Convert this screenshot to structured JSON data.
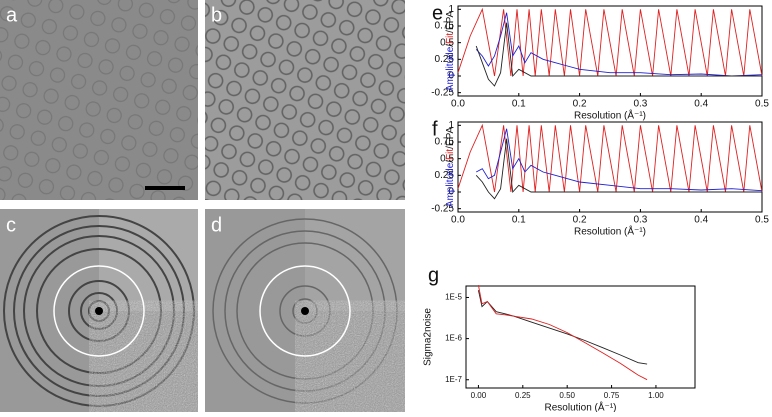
{
  "panels": {
    "a": "a",
    "b": "b",
    "c": "c",
    "d": "d"
  },
  "chart_data": [
    {
      "type": "line",
      "label": "e",
      "ylabel_parts": [
        "Amplitude",
        "/",
        "Fit",
        "/EPA"
      ],
      "xlabel": "Resolution (Å⁻¹)",
      "xlim": [
        0,
        0.5
      ],
      "ylim": [
        -0.3,
        1.05
      ],
      "xticks": [
        {
          "value": 0,
          "label": "0.0"
        },
        0.1,
        0.2,
        0.3,
        0.4,
        0.5
      ],
      "yticks": [
        -0.25,
        0,
        0.25,
        0.5,
        0.75,
        1
      ],
      "series": [
        {
          "color": "#e02020",
          "x": [
            0,
            0.02,
            0.04,
            0.06,
            0.075,
            0.087,
            0.097,
            0.107,
            0.117,
            0.127,
            0.137,
            0.15,
            0.16,
            0.175,
            0.185,
            0.2,
            0.21,
            0.23,
            0.24,
            0.26,
            0.27,
            0.29,
            0.3,
            0.32,
            0.33,
            0.35,
            0.36,
            0.38,
            0.39,
            0.41,
            0.42,
            0.44,
            0.45,
            0.47,
            0.48,
            0.5
          ],
          "values": [
            0.05,
            0.6,
            1,
            0,
            1,
            0,
            1,
            0,
            1,
            0,
            1,
            0,
            1,
            0,
            1,
            0,
            1,
            0,
            1,
            0,
            1,
            0,
            1,
            0,
            1,
            0,
            1,
            0,
            1,
            0,
            1,
            0,
            1,
            0,
            1,
            0
          ]
        },
        {
          "color": "#2020d0",
          "x": [
            0.03,
            0.04,
            0.05,
            0.06,
            0.07,
            0.08,
            0.09,
            0.1,
            0.11,
            0.12,
            0.14,
            0.16,
            0.18,
            0.2,
            0.25,
            0.3,
            0.35,
            0.4,
            0.45,
            0.5
          ],
          "values": [
            0.4,
            0.3,
            0.15,
            0.3,
            0.6,
            0.95,
            0.3,
            0.45,
            0.2,
            0.35,
            0.25,
            0.2,
            0.15,
            0.1,
            0.05,
            0.05,
            0.02,
            0.03,
            0,
            0.02
          ]
        },
        {
          "color": "#222222",
          "x": [
            0.03,
            0.04,
            0.05,
            0.06,
            0.07,
            0.08,
            0.09,
            0.1,
            0.12,
            0.15,
            0.2,
            0.3,
            0.4,
            0.5
          ],
          "values": [
            0.45,
            0.2,
            -0.05,
            -0.15,
            0.05,
            0.8,
            0,
            0.1,
            0,
            0,
            0,
            0,
            0,
            0
          ]
        }
      ]
    },
    {
      "type": "line",
      "label": "f",
      "ylabel_parts": [
        "Amplitude",
        "/",
        "Fit",
        "/EPA"
      ],
      "xlabel": "Resolution (Å⁻¹)",
      "xlim": [
        0,
        0.5
      ],
      "ylim": [
        -0.3,
        1.05
      ],
      "xticks": [
        {
          "value": 0,
          "label": "0.0"
        },
        0.1,
        0.2,
        0.3,
        0.4,
        0.5
      ],
      "yticks": [
        -0.25,
        0,
        0.25,
        0.5,
        0.75,
        1
      ],
      "series": [
        {
          "color": "#e02020",
          "x": [
            0,
            0.02,
            0.04,
            0.06,
            0.075,
            0.087,
            0.097,
            0.107,
            0.117,
            0.127,
            0.137,
            0.15,
            0.16,
            0.175,
            0.185,
            0.2,
            0.21,
            0.23,
            0.24,
            0.26,
            0.27,
            0.29,
            0.3,
            0.32,
            0.33,
            0.35,
            0.36,
            0.38,
            0.39,
            0.41,
            0.42,
            0.44,
            0.45,
            0.47,
            0.48,
            0.5
          ],
          "values": [
            0.05,
            0.6,
            1,
            0,
            1,
            0,
            1,
            0,
            1,
            0,
            1,
            0,
            1,
            0,
            1,
            0,
            1,
            0,
            1,
            0,
            1,
            0,
            1,
            0,
            1,
            0,
            1,
            0,
            1,
            0,
            1,
            0,
            1,
            0,
            1,
            0
          ]
        },
        {
          "color": "#2020d0",
          "x": [
            0.03,
            0.04,
            0.05,
            0.06,
            0.07,
            0.08,
            0.09,
            0.1,
            0.11,
            0.12,
            0.14,
            0.16,
            0.18,
            0.2,
            0.25,
            0.3,
            0.35,
            0.4,
            0.45,
            0.5
          ],
          "values": [
            0.3,
            0.35,
            0.2,
            0.25,
            0.6,
            0.95,
            0.35,
            0.5,
            0.3,
            0.4,
            0.3,
            0.25,
            0.2,
            0.15,
            0.1,
            0.05,
            0.05,
            0.03,
            0.05,
            0.02
          ]
        },
        {
          "color": "#222222",
          "x": [
            0.03,
            0.04,
            0.05,
            0.06,
            0.07,
            0.08,
            0.09,
            0.1,
            0.12,
            0.15,
            0.2,
            0.3,
            0.4,
            0.5
          ],
          "values": [
            0.25,
            0.15,
            0,
            -0.1,
            0.05,
            0.8,
            0,
            0.1,
            0,
            0,
            0,
            0,
            0,
            0
          ]
        }
      ]
    },
    {
      "type": "line",
      "label": "g",
      "ylabel": "Sigma2noise",
      "xlabel": "Resolution (Å⁻¹)",
      "ylog": true,
      "xlim": [
        -0.07,
        1.22
      ],
      "ylim": [
        6.3e-08,
        1.9e-05
      ],
      "xticks": [
        {
          "value": 0,
          "label": "0.00"
        },
        0.25,
        {
          "value": 0.5,
          "label": "0.50"
        },
        0.75,
        {
          "value": 1,
          "label": "1.00"
        }
      ],
      "yticks": [
        {
          "value": 1e-07,
          "label": "1E-7"
        },
        {
          "value": 1e-06,
          "label": "1E-6"
        },
        {
          "value": 1e-05,
          "label": "1E-5"
        }
      ],
      "series": [
        {
          "color": "#222222",
          "x": [
            0,
            0.02,
            0.05,
            0.1,
            0.15,
            0.2,
            0.3,
            0.4,
            0.5,
            0.6,
            0.7,
            0.8,
            0.9,
            0.95
          ],
          "values": [
            1.5e-05,
            6e-06,
            8e-06,
            4.5e-06,
            4e-06,
            3.5e-06,
            2.5e-06,
            1.8e-06,
            1.3e-06,
            9e-07,
            6e-07,
            4e-07,
            2.6e-07,
            2.4e-07
          ]
        },
        {
          "color": "#e02020",
          "x": [
            0,
            0.02,
            0.05,
            0.1,
            0.15,
            0.2,
            0.3,
            0.4,
            0.5,
            0.6,
            0.7,
            0.8,
            0.9,
            0.95
          ],
          "values": [
            2e-05,
            7e-06,
            8e-06,
            4e-06,
            3.8e-06,
            3.5e-06,
            3e-06,
            2.2e-06,
            1.4e-06,
            8e-07,
            4.5e-07,
            2.5e-07,
            1.3e-07,
            1e-07
          ]
        }
      ]
    }
  ]
}
